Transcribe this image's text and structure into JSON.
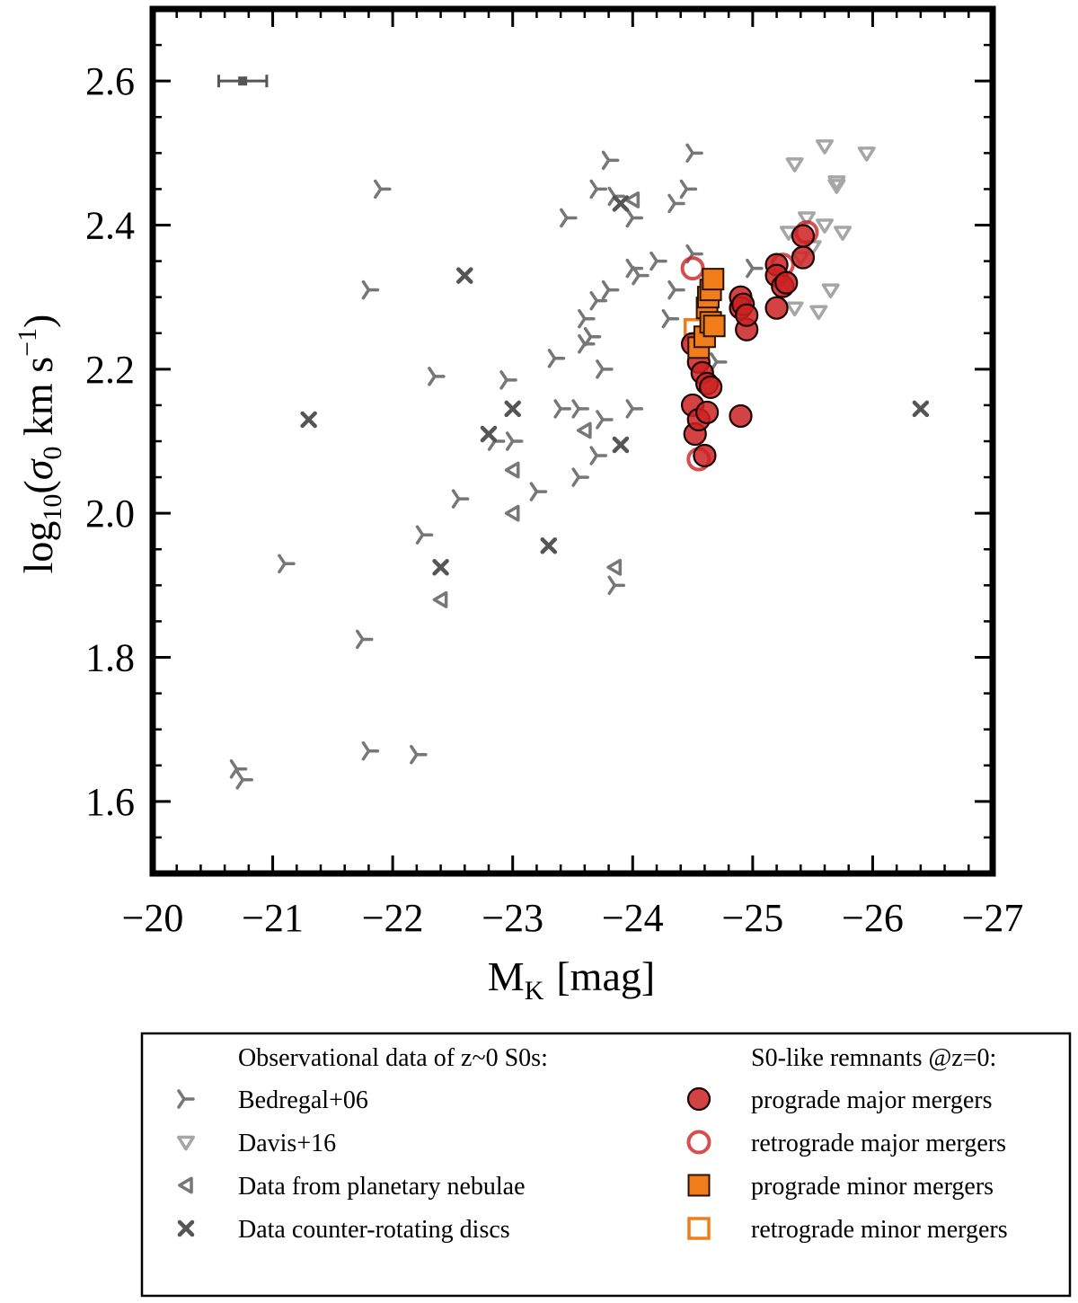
{
  "chart_data": {
    "type": "scatter",
    "xlabel": "M_K [mag]",
    "xlabel_main": "M",
    "xlabel_sub": "K",
    "xlabel_unit": "[mag]",
    "ylabel": "log10(σ0 km s^-1)",
    "ylabel_parts": {
      "log": "log",
      "log_sub": "10",
      "open": "(",
      "sigma": "σ",
      "sigma_sub": "0",
      "units": " km s",
      "exp": "−1",
      "close": ")"
    },
    "xlim": [
      -20,
      -27
    ],
    "ylim": [
      1.5,
      2.7
    ],
    "xticks": [
      -20,
      -21,
      -22,
      -23,
      -24,
      -25,
      -26,
      -27
    ],
    "xtick_labels": [
      "−20",
      "−21",
      "−22",
      "−23",
      "−24",
      "−25",
      "−26",
      "−27"
    ],
    "yticks": [
      1.6,
      1.8,
      2.0,
      2.2,
      2.4,
      2.6
    ],
    "ytick_labels": [
      "1.6",
      "1.8",
      "2.0",
      "2.2",
      "2.4",
      "2.6"
    ],
    "error_bar_example": {
      "x": -20.75,
      "y": 2.6,
      "xerr": 0.2
    },
    "colors": {
      "obs_dark": "#555555",
      "obs_mid": "#777777",
      "obs_light": "#a6a6a6",
      "major": "#cc2222",
      "minor": "#f07d1a"
    },
    "series": [
      {
        "name": "Bedregal+06",
        "marker": "tri",
        "points": [
          [
            -20.7,
            1.645
          ],
          [
            -20.75,
            1.63
          ],
          [
            -21.1,
            1.93
          ],
          [
            -21.75,
            1.825
          ],
          [
            -21.8,
            1.67
          ],
          [
            -21.8,
            2.31
          ],
          [
            -21.9,
            2.45
          ],
          [
            -22.2,
            1.665
          ],
          [
            -22.25,
            1.97
          ],
          [
            -22.35,
            2.19
          ],
          [
            -22.55,
            2.02
          ],
          [
            -22.85,
            2.1
          ],
          [
            -22.95,
            2.185
          ],
          [
            -23.0,
            2.1
          ],
          [
            -23.2,
            2.03
          ],
          [
            -23.35,
            2.215
          ],
          [
            -23.4,
            2.145
          ],
          [
            -23.45,
            2.41
          ],
          [
            -23.55,
            2.05
          ],
          [
            -23.55,
            2.145
          ],
          [
            -23.6,
            2.27
          ],
          [
            -23.6,
            2.235
          ],
          [
            -23.65,
            2.245
          ],
          [
            -23.7,
            2.08
          ],
          [
            -23.7,
            2.295
          ],
          [
            -23.7,
            2.45
          ],
          [
            -23.75,
            2.2
          ],
          [
            -23.75,
            2.13
          ],
          [
            -23.8,
            2.31
          ],
          [
            -23.8,
            2.49
          ],
          [
            -23.85,
            1.9
          ],
          [
            -23.85,
            2.44
          ],
          [
            -24.0,
            2.145
          ],
          [
            -24.0,
            2.34
          ],
          [
            -24.0,
            2.41
          ],
          [
            -24.05,
            2.33
          ],
          [
            -24.2,
            2.35
          ],
          [
            -24.3,
            2.27
          ],
          [
            -24.35,
            2.43
          ],
          [
            -24.35,
            2.31
          ],
          [
            -24.45,
            2.45
          ],
          [
            -24.5,
            2.5
          ],
          [
            -24.5,
            2.36
          ],
          [
            -24.7,
            2.21
          ],
          [
            -25.0,
            2.34
          ]
        ]
      },
      {
        "name": "Davis+16",
        "marker": "tri_down",
        "points": [
          [
            -25.25,
            2.31
          ],
          [
            -25.3,
            2.39
          ],
          [
            -25.35,
            2.285
          ],
          [
            -25.35,
            2.485
          ],
          [
            -25.4,
            2.355
          ],
          [
            -25.45,
            2.41
          ],
          [
            -25.5,
            2.37
          ],
          [
            -25.55,
            2.28
          ],
          [
            -25.6,
            2.51
          ],
          [
            -25.6,
            2.4
          ],
          [
            -25.65,
            2.31
          ],
          [
            -25.7,
            2.46
          ],
          [
            -25.7,
            2.455
          ],
          [
            -25.75,
            2.39
          ],
          [
            -25.95,
            2.5
          ]
        ]
      },
      {
        "name": "Data from planetary nebulae",
        "marker": "tri_left",
        "points": [
          [
            -22.4,
            1.88
          ],
          [
            -23.0,
            2.06
          ],
          [
            -23.0,
            2.0
          ],
          [
            -23.6,
            2.115
          ],
          [
            -23.85,
            1.925
          ],
          [
            -24.0,
            2.435
          ]
        ]
      },
      {
        "name": "Data counter-rotating discs",
        "marker": "x",
        "points": [
          [
            -21.3,
            2.13
          ],
          [
            -22.4,
            1.925
          ],
          [
            -22.6,
            2.33
          ],
          [
            -22.8,
            2.11
          ],
          [
            -23.0,
            2.145
          ],
          [
            -23.3,
            1.955
          ],
          [
            -23.9,
            2.095
          ],
          [
            -23.9,
            2.43
          ],
          [
            -26.4,
            2.145
          ]
        ]
      },
      {
        "name": "prograde major mergers",
        "marker": "circle_filled",
        "points": [
          [
            -24.5,
            2.235
          ],
          [
            -24.5,
            2.15
          ],
          [
            -24.52,
            2.11
          ],
          [
            -24.55,
            2.21
          ],
          [
            -24.55,
            2.13
          ],
          [
            -24.58,
            2.195
          ],
          [
            -24.6,
            2.08
          ],
          [
            -24.62,
            2.14
          ],
          [
            -24.62,
            2.18
          ],
          [
            -24.65,
            2.175
          ],
          [
            -24.9,
            2.3
          ],
          [
            -24.9,
            2.285
          ],
          [
            -24.9,
            2.135
          ],
          [
            -24.92,
            2.29
          ],
          [
            -24.95,
            2.255
          ],
          [
            -24.95,
            2.275
          ],
          [
            -25.2,
            2.345
          ],
          [
            -25.2,
            2.285
          ],
          [
            -25.2,
            2.33
          ],
          [
            -25.25,
            2.315
          ],
          [
            -25.28,
            2.32
          ],
          [
            -25.42,
            2.385
          ],
          [
            -25.42,
            2.355
          ]
        ]
      },
      {
        "name": "retrograde major mergers",
        "marker": "circle_open",
        "points": [
          [
            -24.5,
            2.34
          ],
          [
            -24.55,
            2.075
          ],
          [
            -25.25,
            2.345
          ],
          [
            -25.45,
            2.39
          ]
        ]
      },
      {
        "name": "prograde minor mergers",
        "marker": "square_filled",
        "points": [
          [
            -24.55,
            2.23
          ],
          [
            -24.6,
            2.245
          ],
          [
            -24.62,
            2.285
          ],
          [
            -24.63,
            2.3
          ],
          [
            -24.65,
            2.265
          ],
          [
            -24.65,
            2.31
          ],
          [
            -24.67,
            2.325
          ],
          [
            -24.68,
            2.26
          ]
        ]
      },
      {
        "name": "retrograde minor mergers",
        "marker": "square_open",
        "points": [
          [
            -24.52,
            2.255
          ]
        ]
      }
    ]
  },
  "legend": {
    "obs_header": "Observational data of z~0 S0s:",
    "sim_header": "S0-like remnants @z=0:",
    "entries": [
      {
        "label": "Bedregal+06"
      },
      {
        "label": "Davis+16"
      },
      {
        "label": "Data from planetary nebulae"
      },
      {
        "label": "Data counter-rotating discs"
      },
      {
        "label": "prograde major mergers"
      },
      {
        "label": "retrograde major mergers"
      },
      {
        "label": "prograde minor mergers"
      },
      {
        "label": "retrograde minor mergers"
      }
    ]
  }
}
